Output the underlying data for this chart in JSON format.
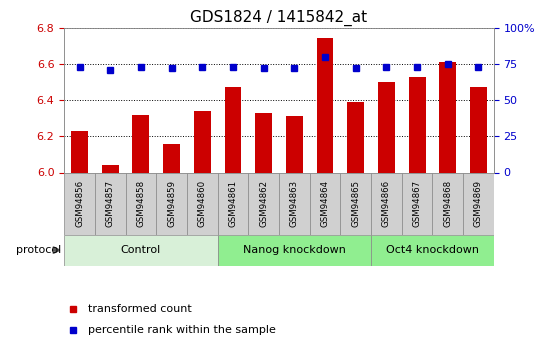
{
  "title": "GDS1824 / 1415842_at",
  "samples": [
    "GSM94856",
    "GSM94857",
    "GSM94858",
    "GSM94859",
    "GSM94860",
    "GSM94861",
    "GSM94862",
    "GSM94863",
    "GSM94864",
    "GSM94865",
    "GSM94866",
    "GSM94867",
    "GSM94868",
    "GSM94869"
  ],
  "transformed_count": [
    6.23,
    6.04,
    6.32,
    6.16,
    6.34,
    6.47,
    6.33,
    6.31,
    6.74,
    6.39,
    6.5,
    6.53,
    6.61,
    6.47
  ],
  "percentile_rank": [
    73,
    71,
    73,
    72,
    73,
    73,
    72,
    72,
    80,
    72,
    73,
    73,
    75,
    73
  ],
  "ylim_left": [
    6.0,
    6.8
  ],
  "ylim_right": [
    0,
    100
  ],
  "yticks_left": [
    6.0,
    6.2,
    6.4,
    6.6,
    6.8
  ],
  "yticks_right": [
    0,
    25,
    50,
    75,
    100
  ],
  "ytick_labels_right": [
    "0",
    "25",
    "50",
    "75",
    "100%"
  ],
  "groups": [
    {
      "label": "Control",
      "start": 0,
      "end": 5,
      "color": "#d8f0d8"
    },
    {
      "label": "Nanog knockdown",
      "start": 5,
      "end": 10,
      "color": "#90ee90"
    },
    {
      "label": "Oct4 knockdown",
      "start": 10,
      "end": 14,
      "color": "#90ee90"
    }
  ],
  "bar_color": "#cc0000",
  "dot_color": "#0000cc",
  "bar_baseline": 6.0,
  "left_tick_color": "#cc0000",
  "right_tick_color": "#0000cc",
  "title_fontsize": 11,
  "legend_labels": [
    "transformed count",
    "percentile rank within the sample"
  ],
  "protocol_label": "protocol",
  "plot_bg": "#ffffff",
  "xtick_bg": "#d0d0d0"
}
